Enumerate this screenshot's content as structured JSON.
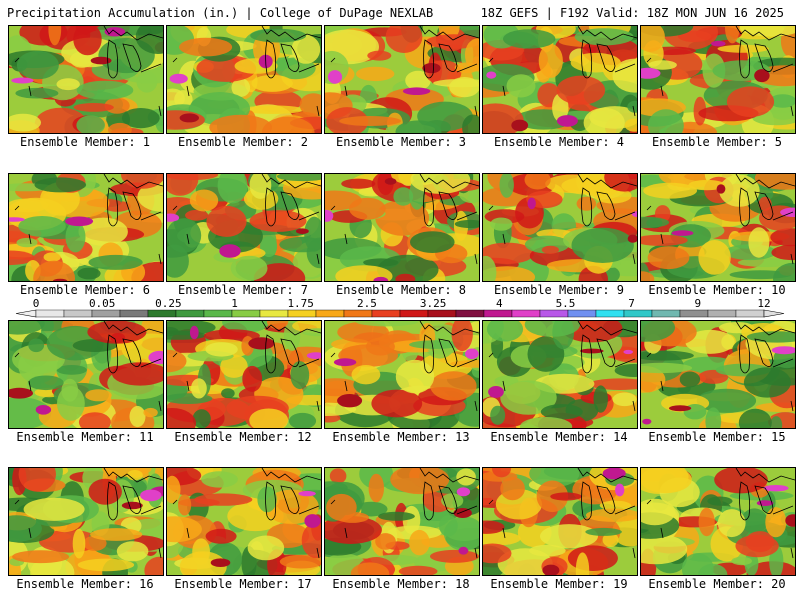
{
  "header": {
    "left": "Precipitation Accumulation (in.) | College of DuPage NEXLAB",
    "right": "18Z GEFS | F192 Valid: 18Z MON JUN 16 2025"
  },
  "colorbar": {
    "ticks": [
      "0",
      "0.05",
      "0.25",
      "1",
      "1.75",
      "2.5",
      "3.25",
      "4",
      "5.5",
      "7",
      "9",
      "12"
    ],
    "colors": [
      "#e8e8e8",
      "#c8c8c8",
      "#a0a0a0",
      "#7a7a7a",
      "#2d7a2d",
      "#3f9a3f",
      "#5ab84a",
      "#88cc44",
      "#e8e840",
      "#f5d020",
      "#f8a818",
      "#f07818",
      "#e84020",
      "#d01818",
      "#a8101c",
      "#801040",
      "#c01890",
      "#e040c8",
      "#b858e8",
      "#7090f0",
      "#30e0f0",
      "#30c8c8",
      "#70b8b0",
      "#909090",
      "#b0b0b0",
      "#d0d0d0"
    ]
  },
  "panels": [
    {
      "label": "Ensemble Member: 1"
    },
    {
      "label": "Ensemble Member: 2"
    },
    {
      "label": "Ensemble Member: 3"
    },
    {
      "label": "Ensemble Member: 4"
    },
    {
      "label": "Ensemble Member: 5"
    },
    {
      "label": "Ensemble Member: 6"
    },
    {
      "label": "Ensemble Member: 7"
    },
    {
      "label": "Ensemble Member: 8"
    },
    {
      "label": "Ensemble Member: 9"
    },
    {
      "label": "Ensemble Member: 10"
    },
    {
      "label": "Ensemble Member: 11"
    },
    {
      "label": "Ensemble Member: 12"
    },
    {
      "label": "Ensemble Member: 13"
    },
    {
      "label": "Ensemble Member: 14"
    },
    {
      "label": "Ensemble Member: 15"
    },
    {
      "label": "Ensemble Member: 16"
    },
    {
      "label": "Ensemble Member: 17"
    },
    {
      "label": "Ensemble Member: 18"
    },
    {
      "label": "Ensemble Member: 19"
    },
    {
      "label": "Ensemble Member: 20"
    }
  ]
}
